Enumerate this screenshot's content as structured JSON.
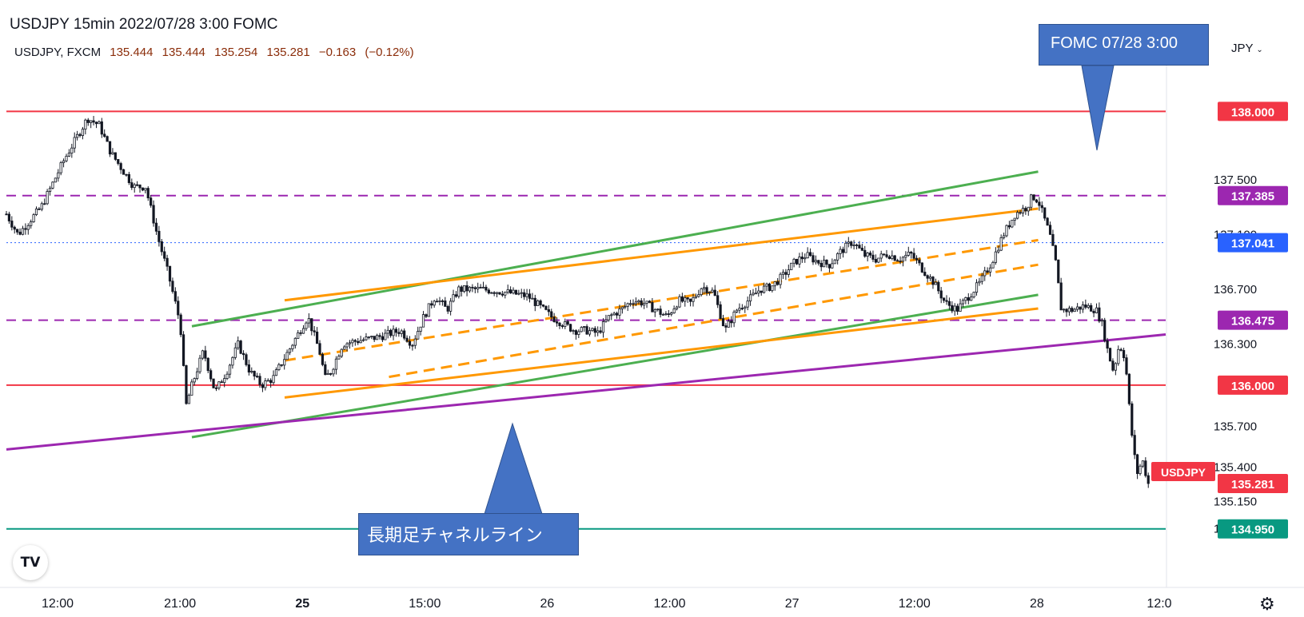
{
  "header": {
    "title": "USDJPY 15min 2022/07/28 3:00 FOMC",
    "symbol": "USDJPY, FXCM",
    "open": "135.444",
    "high": "135.444",
    "low": "135.254",
    "close": "135.281",
    "change": "−0.163",
    "change_pct": "(−0.12%)"
  },
  "currency_label": "JPY",
  "callouts": {
    "fomc": "FOMC 07/28 3:00",
    "channel": "長期足チャネルライン"
  },
  "logo_text": "TV",
  "colors": {
    "red_level": "#f23645",
    "purple": "#9c27b0",
    "green": "#4caf50",
    "orange": "#ff9800",
    "teal": "#089981",
    "blue_dotted": "#2962ff",
    "candle": "#131722",
    "price_tag": "#f23645",
    "callout": "#4472c4"
  },
  "chart_data": {
    "type": "candlestick",
    "symbol": "USDJPY",
    "interval": "15min",
    "ylim": [
      134.75,
      138.3
    ],
    "x_ticks": [
      "12:00",
      "21:00",
      "25",
      "15:00",
      "26",
      "12:00",
      "27",
      "12:00",
      "28",
      "12:0"
    ],
    "y_ticks": [
      "137.500",
      "137.100",
      "136.700",
      "136.300",
      "135.700",
      "135.400",
      "135.150",
      "134.950"
    ],
    "price_labels": [
      {
        "value": 138.0,
        "text": "138.000",
        "color": "red"
      },
      {
        "value": 137.385,
        "text": "137.385",
        "color": "purple"
      },
      {
        "value": 137.041,
        "text": "137.041",
        "color": "blue"
      },
      {
        "value": 136.475,
        "text": "136.475",
        "color": "purple"
      },
      {
        "value": 136.0,
        "text": "136.000",
        "color": "red"
      },
      {
        "value": 135.281,
        "text": "135.281",
        "color": "red"
      },
      {
        "value": 134.95,
        "text": "134.950",
        "color": "teal"
      }
    ],
    "last_price_tag": "USDJPY",
    "horizontal_levels": [
      {
        "value": 138.0,
        "style": "solid",
        "color": "red"
      },
      {
        "value": 137.385,
        "style": "dashed",
        "color": "purple"
      },
      {
        "value": 137.041,
        "style": "dotted",
        "color": "blue"
      },
      {
        "value": 136.475,
        "style": "dashed",
        "color": "purple"
      },
      {
        "value": 136.0,
        "style": "solid",
        "color": "red"
      },
      {
        "value": 134.95,
        "style": "solid",
        "color": "teal"
      }
    ],
    "trend_lines": [
      {
        "color": "green",
        "style": "solid",
        "from": [
          0.16,
          136.43
        ],
        "to": [
          0.89,
          137.56
        ]
      },
      {
        "color": "green",
        "style": "solid",
        "from": [
          0.16,
          135.62
        ],
        "to": [
          0.89,
          136.66
        ]
      },
      {
        "color": "orange",
        "style": "solid",
        "from": [
          0.24,
          136.62
        ],
        "to": [
          0.89,
          137.29
        ]
      },
      {
        "color": "orange",
        "style": "solid",
        "from": [
          0.24,
          135.91
        ],
        "to": [
          0.89,
          136.56
        ]
      },
      {
        "color": "orange",
        "style": "dashed",
        "from": [
          0.24,
          136.18
        ],
        "to": [
          0.89,
          137.06
        ]
      },
      {
        "color": "orange",
        "style": "dashed",
        "from": [
          0.33,
          136.06
        ],
        "to": [
          0.89,
          136.88
        ]
      },
      {
        "color": "purple",
        "style": "solid",
        "from": [
          0.0,
          135.53
        ],
        "to": [
          1.0,
          136.37
        ]
      }
    ],
    "price_path": [
      [
        0.0,
        137.25
      ],
      [
        0.01,
        137.1
      ],
      [
        0.03,
        137.3
      ],
      [
        0.05,
        137.65
      ],
      [
        0.07,
        137.95
      ],
      [
        0.08,
        137.9
      ],
      [
        0.09,
        137.7
      ],
      [
        0.11,
        137.45
      ],
      [
        0.12,
        137.45
      ],
      [
        0.13,
        137.1
      ],
      [
        0.14,
        136.8
      ],
      [
        0.15,
        136.45
      ],
      [
        0.155,
        135.85
      ],
      [
        0.16,
        136.0
      ],
      [
        0.17,
        136.25
      ],
      [
        0.18,
        135.95
      ],
      [
        0.19,
        136.1
      ],
      [
        0.2,
        136.3
      ],
      [
        0.21,
        136.1
      ],
      [
        0.22,
        136.0
      ],
      [
        0.23,
        136.05
      ],
      [
        0.24,
        136.2
      ],
      [
        0.25,
        136.35
      ],
      [
        0.26,
        136.5
      ],
      [
        0.27,
        136.25
      ],
      [
        0.275,
        136.05
      ],
      [
        0.28,
        136.1
      ],
      [
        0.29,
        136.3
      ],
      [
        0.3,
        136.32
      ],
      [
        0.32,
        136.35
      ],
      [
        0.34,
        136.4
      ],
      [
        0.35,
        136.3
      ],
      [
        0.36,
        136.5
      ],
      [
        0.37,
        136.65
      ],
      [
        0.38,
        136.55
      ],
      [
        0.39,
        136.7
      ],
      [
        0.41,
        136.7
      ],
      [
        0.43,
        136.68
      ],
      [
        0.45,
        136.65
      ],
      [
        0.47,
        136.5
      ],
      [
        0.49,
        136.4
      ],
      [
        0.5,
        136.4
      ],
      [
        0.51,
        136.38
      ],
      [
        0.52,
        136.5
      ],
      [
        0.53,
        136.55
      ],
      [
        0.54,
        136.62
      ],
      [
        0.55,
        136.6
      ],
      [
        0.56,
        136.55
      ],
      [
        0.57,
        136.5
      ],
      [
        0.58,
        136.62
      ],
      [
        0.59,
        136.6
      ],
      [
        0.6,
        136.72
      ],
      [
        0.61,
        136.68
      ],
      [
        0.62,
        136.4
      ],
      [
        0.63,
        136.55
      ],
      [
        0.64,
        136.62
      ],
      [
        0.65,
        136.7
      ],
      [
        0.66,
        136.72
      ],
      [
        0.67,
        136.8
      ],
      [
        0.68,
        136.9
      ],
      [
        0.69,
        136.95
      ],
      [
        0.7,
        136.9
      ],
      [
        0.71,
        136.88
      ],
      [
        0.72,
        136.98
      ],
      [
        0.73,
        137.05
      ],
      [
        0.74,
        136.95
      ],
      [
        0.75,
        136.92
      ],
      [
        0.76,
        136.96
      ],
      [
        0.77,
        136.92
      ],
      [
        0.78,
        136.96
      ],
      [
        0.79,
        136.85
      ],
      [
        0.8,
        136.75
      ],
      [
        0.81,
        136.6
      ],
      [
        0.82,
        136.55
      ],
      [
        0.83,
        136.65
      ],
      [
        0.84,
        136.75
      ],
      [
        0.85,
        136.9
      ],
      [
        0.86,
        137.1
      ],
      [
        0.87,
        137.25
      ],
      [
        0.88,
        137.3
      ],
      [
        0.885,
        137.38
      ],
      [
        0.89,
        137.35
      ],
      [
        0.9,
        137.1
      ],
      [
        0.905,
        136.9
      ],
      [
        0.91,
        136.55
      ],
      [
        0.92,
        136.55
      ],
      [
        0.93,
        136.58
      ],
      [
        0.94,
        136.55
      ],
      [
        0.945,
        136.45
      ],
      [
        0.95,
        136.25
      ],
      [
        0.955,
        136.1
      ],
      [
        0.96,
        136.3
      ],
      [
        0.965,
        136.2
      ],
      [
        0.97,
        135.7
      ],
      [
        0.975,
        135.35
      ],
      [
        0.98,
        135.45
      ],
      [
        0.985,
        135.28
      ]
    ]
  }
}
